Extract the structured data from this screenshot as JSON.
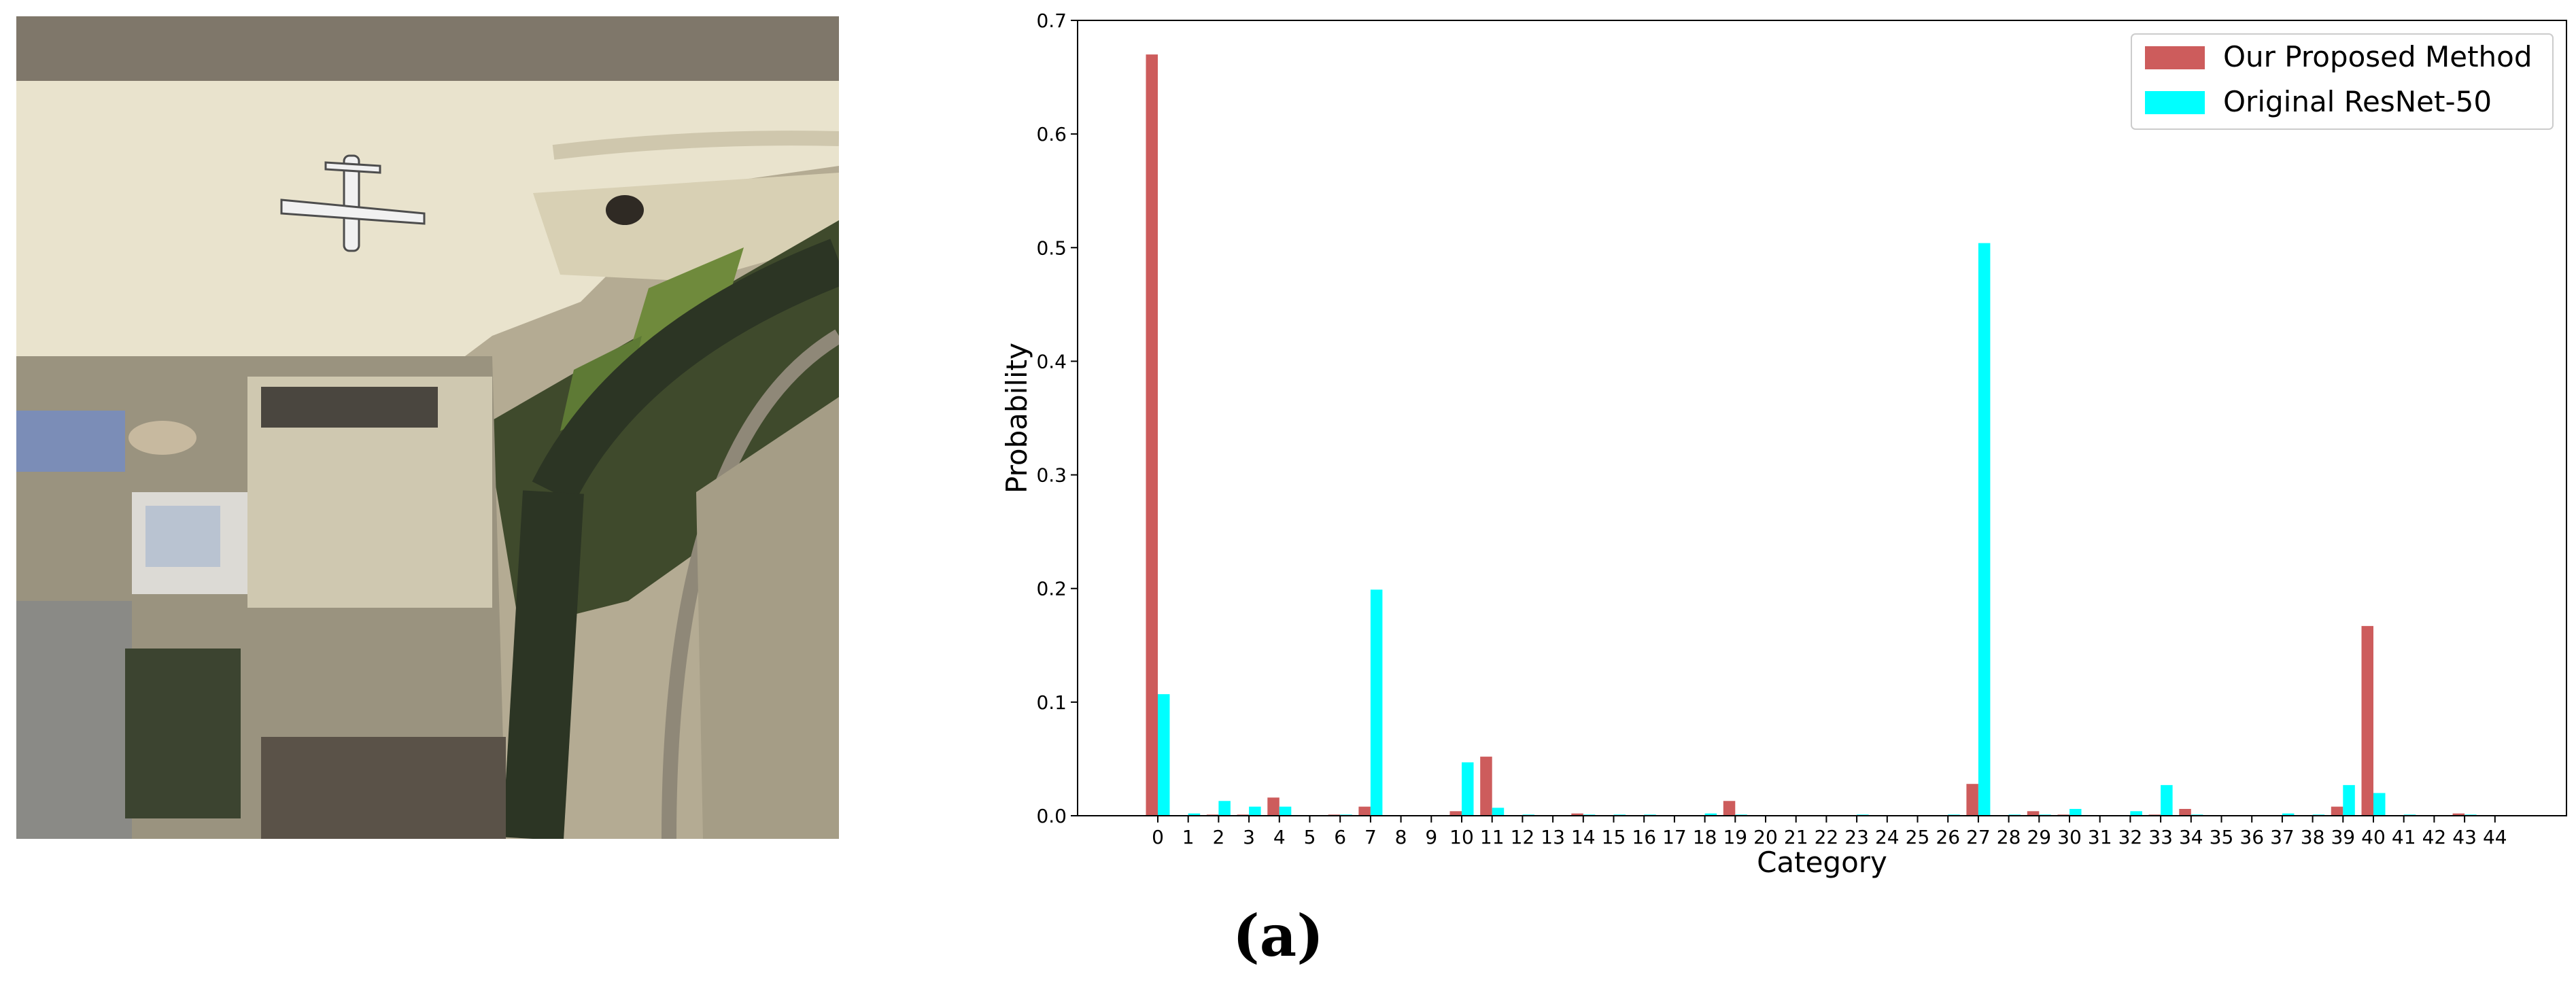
{
  "panel_label": "(a)",
  "chart_data": {
    "type": "bar",
    "title": "",
    "xlabel": "Category",
    "ylabel": "Probability",
    "ylim": [
      0,
      0.7
    ],
    "yticks": [
      "0.0",
      "0.1",
      "0.2",
      "0.3",
      "0.4",
      "0.5",
      "0.6",
      "0.7"
    ],
    "grid": false,
    "legend_position": "top-right",
    "categories": [
      "0",
      "1",
      "2",
      "3",
      "4",
      "5",
      "6",
      "7",
      "8",
      "9",
      "10",
      "11",
      "12",
      "13",
      "14",
      "15",
      "16",
      "17",
      "18",
      "19",
      "20",
      "21",
      "22",
      "23",
      "24",
      "25",
      "26",
      "27",
      "28",
      "29",
      "30",
      "31",
      "32",
      "33",
      "34",
      "35",
      "36",
      "37",
      "38",
      "39",
      "40",
      "41",
      "42",
      "43",
      "44"
    ],
    "series": [
      {
        "name": "Our Proposed Method",
        "color": "#cd5c5c",
        "values": [
          0.67,
          0.0,
          0.001,
          0.001,
          0.016,
          0.0,
          0.001,
          0.008,
          0.0,
          0.0,
          0.004,
          0.052,
          0.0,
          0.0,
          0.002,
          0.0,
          0.0,
          0.0,
          0.0,
          0.013,
          0.0,
          0.0,
          0.0,
          0.0,
          0.0,
          0.0,
          0.0,
          0.028,
          0.0,
          0.004,
          0.001,
          0.0,
          0.0,
          0.001,
          0.006,
          0.0,
          0.0,
          0.0,
          0.0,
          0.008,
          0.167,
          0.0,
          0.0,
          0.002,
          0.0
        ]
      },
      {
        "name": "Original ResNet-50",
        "color": "#00ffff",
        "values": [
          0.107,
          0.002,
          0.013,
          0.008,
          0.008,
          0.0,
          0.001,
          0.199,
          0.0,
          0.0,
          0.047,
          0.007,
          0.001,
          0.0,
          0.001,
          0.001,
          0.001,
          0.0,
          0.002,
          0.001,
          0.0,
          0.0,
          0.0,
          0.001,
          0.0,
          0.0,
          0.001,
          0.504,
          0.001,
          0.001,
          0.006,
          0.0,
          0.004,
          0.027,
          0.001,
          0.0,
          0.0,
          0.002,
          0.001,
          0.027,
          0.02,
          0.001,
          0.0,
          0.001,
          0.0
        ]
      }
    ]
  }
}
